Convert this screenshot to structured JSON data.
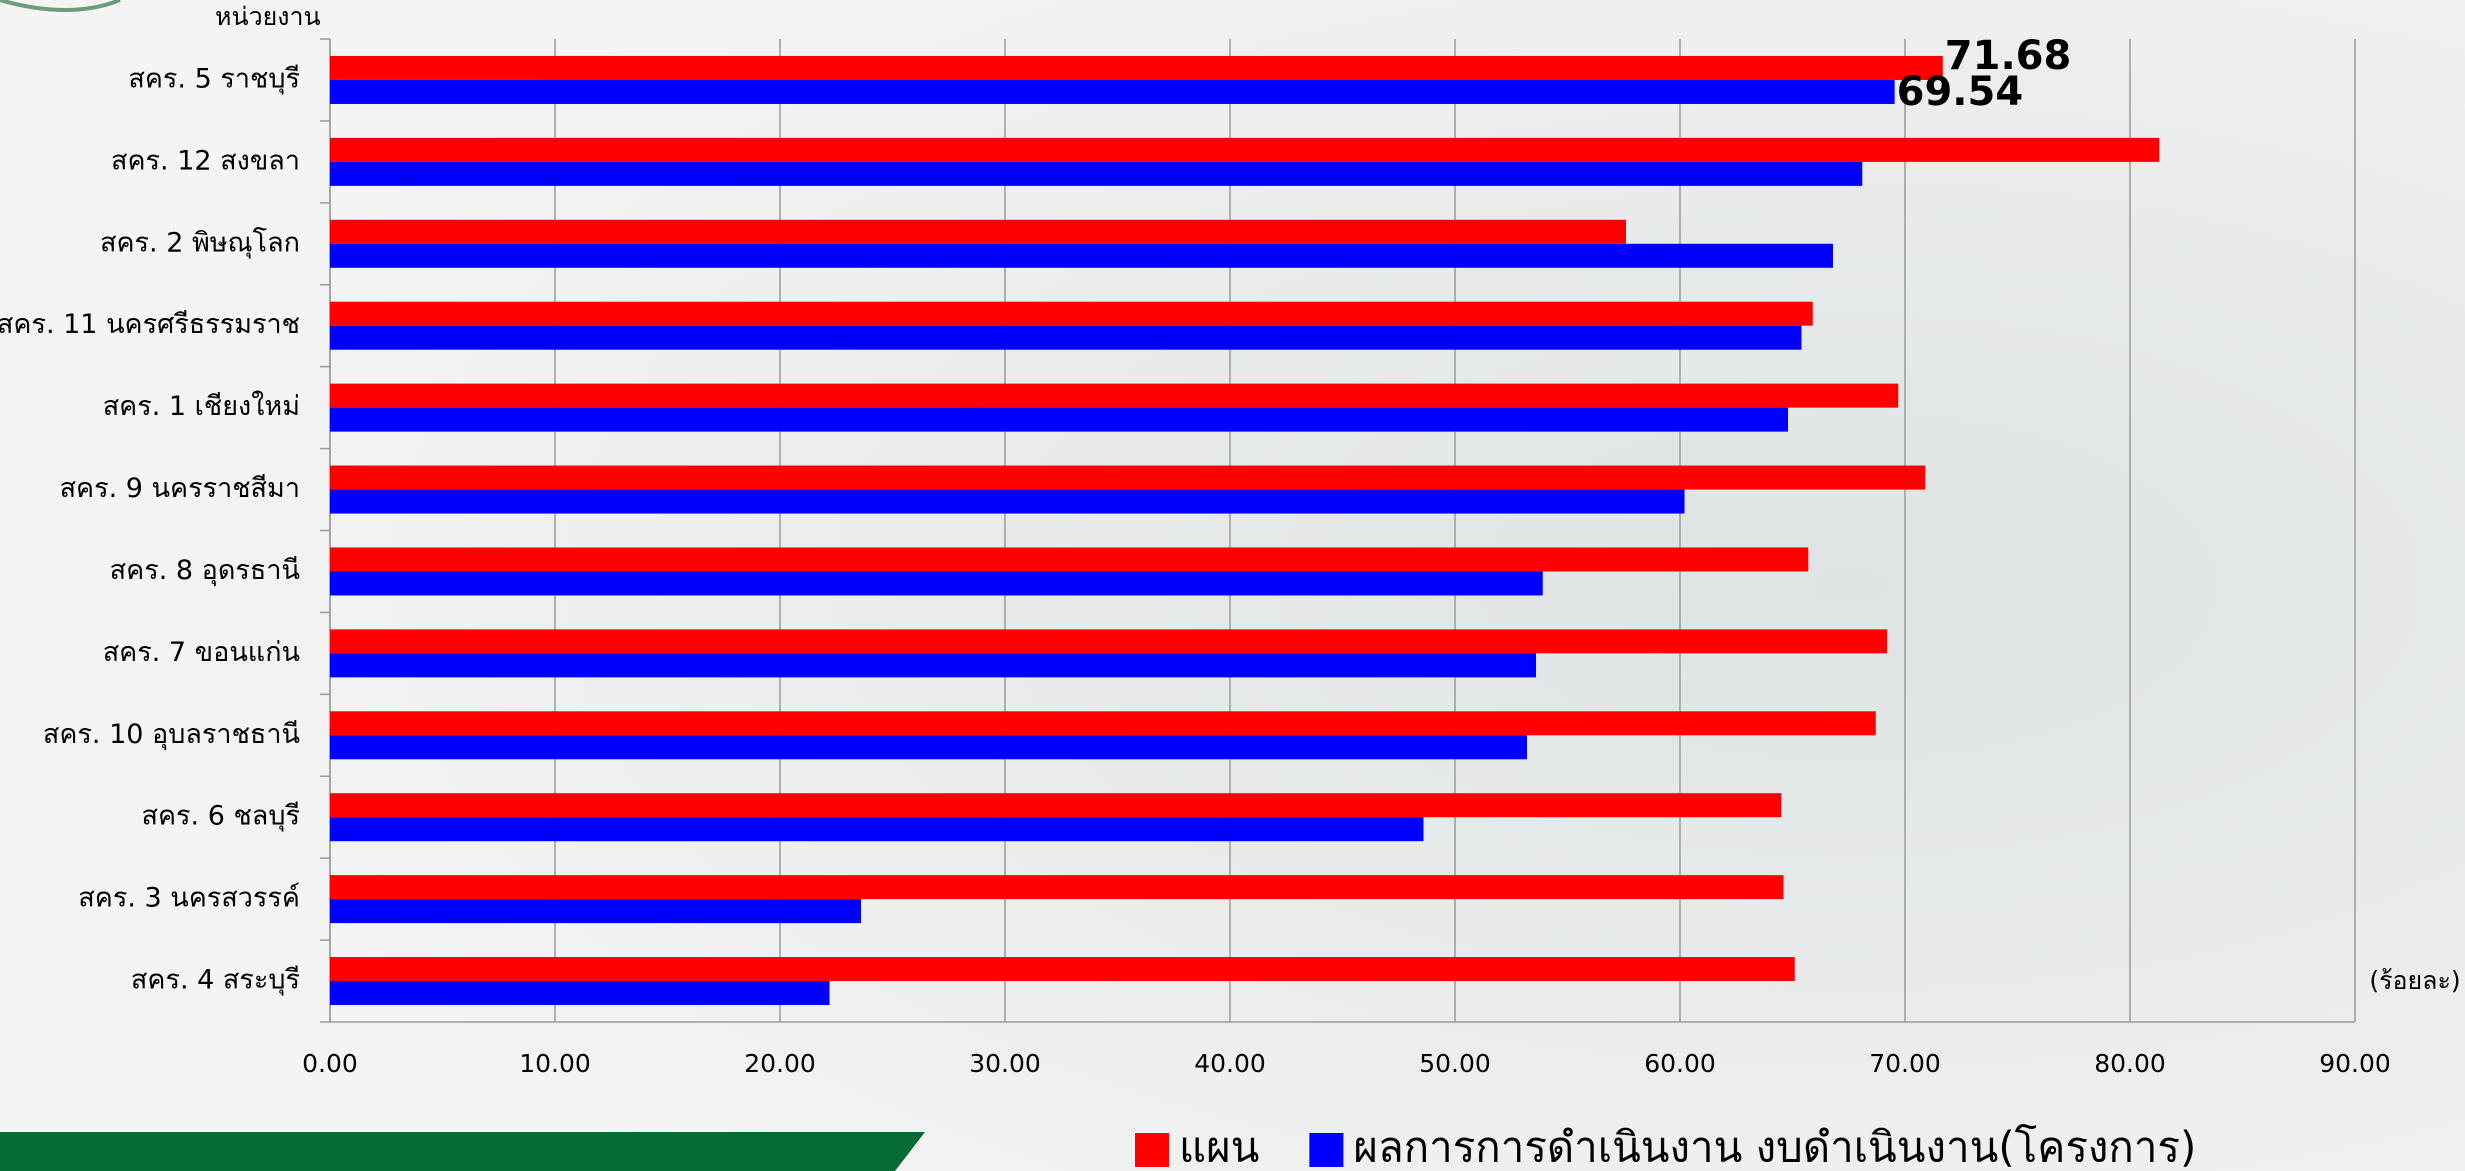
{
  "chart_data": {
    "type": "hbar",
    "y_axis_label": "หน่วยงาน",
    "x_axis_label": "(ร้อยละ)",
    "categories": [
      "สคร.  5 ราชบุรี",
      "สคร.  12 สงขลา",
      "สคร.  2 พิษณุโลก",
      "สคร.  11 นครศรีธรรมราช",
      "สคร. 1 เชียงใหม่",
      "สคร. 9 นครราชสีมา",
      "สคร.  8 อุดรธานี",
      "สคร.  7 ขอนแก่น",
      "สคร. 10 อุบลราชธานี",
      "สคร.  6 ชลบุรี",
      "สคร.  3 นครสวรรค์",
      "สคร.  4 สระบุรี"
    ],
    "series": [
      {
        "name": "แผน",
        "color": "#ff0000",
        "values": [
          71.68,
          81.3,
          57.6,
          65.9,
          69.7,
          70.9,
          65.7,
          69.2,
          68.7,
          64.5,
          64.6,
          65.1
        ],
        "value_labels": [
          "71.68",
          null,
          null,
          null,
          null,
          null,
          null,
          null,
          null,
          null,
          null,
          null
        ]
      },
      {
        "name": "ผลการการดำเนินงาน งบดำเนินงาน(โครงการ)",
        "color": "#0000ff",
        "values": [
          69.54,
          68.1,
          66.8,
          65.4,
          64.8,
          60.2,
          53.9,
          53.6,
          53.2,
          48.6,
          23.6,
          22.2
        ],
        "value_labels": [
          "69.54",
          null,
          null,
          null,
          null,
          null,
          null,
          null,
          null,
          null,
          null,
          null
        ]
      }
    ],
    "xlim": [
      0,
      90
    ],
    "xticks": [
      {
        "value": 0,
        "label": "0.00"
      },
      {
        "value": 10,
        "label": "10.00"
      },
      {
        "value": 20,
        "label": "20.00"
      },
      {
        "value": 30,
        "label": "30.00"
      },
      {
        "value": 40,
        "label": "40.00"
      },
      {
        "value": 50,
        "label": "50.00"
      },
      {
        "value": 60,
        "label": "60.00"
      },
      {
        "value": 70,
        "label": "70.00"
      },
      {
        "value": 80,
        "label": "80.00"
      },
      {
        "value": 90,
        "label": "90.00"
      }
    ],
    "grid": true,
    "legend": "bottom"
  }
}
